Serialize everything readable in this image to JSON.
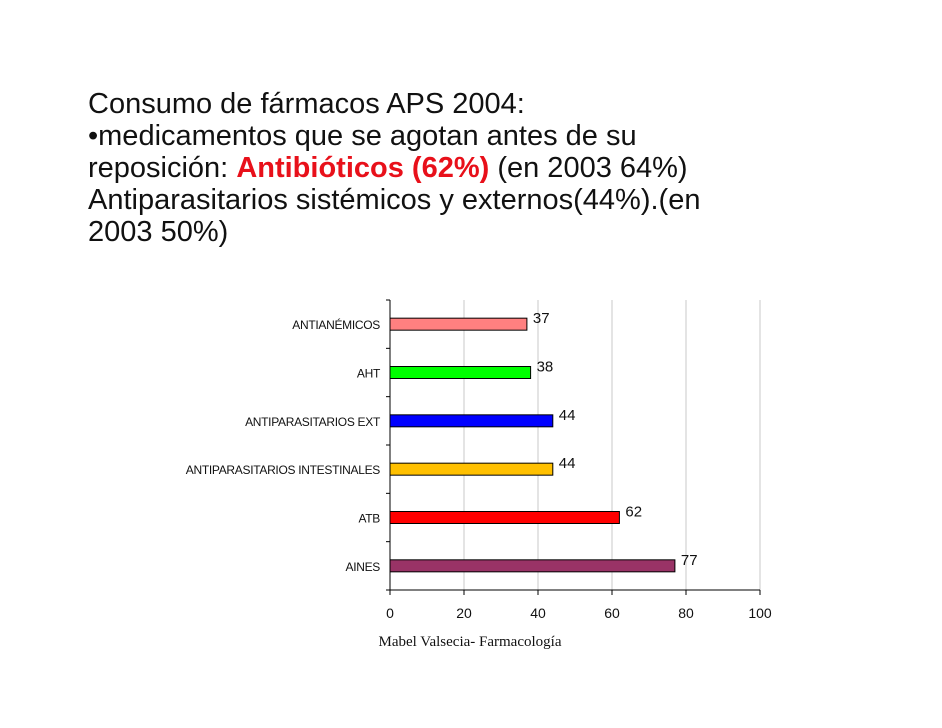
{
  "heading": {
    "line1": "Consumo de fármacos APS  2004:",
    "line2": "•medicamentos que se agotan antes de su",
    "line3_pre": "reposición: ",
    "line3_highlight": "Antibióticos (62%)",
    "line3_post": " (en 2003 64%)",
    "line4": "Antiparasitarios sistémicos y externos(44%).(en",
    "line5": "2003 50%)"
  },
  "footer": "Mabel Valsecia- Farmacología",
  "chart_data": {
    "type": "bar",
    "orientation": "horizontal",
    "title": "",
    "xlabel": "",
    "ylabel": "",
    "categories": [
      "ANTIANÉMICOS",
      "AHT",
      "ANTIPARASITARIOS EXT",
      "ANTIPARASITARIOS INTESTINALES",
      "ATB",
      "AINES"
    ],
    "values": [
      37,
      38,
      44,
      44,
      62,
      77
    ],
    "colors": [
      "#ff8080",
      "#00ff00",
      "#0000ff",
      "#ffc000",
      "#ff0000",
      "#993366"
    ],
    "xlim": [
      0,
      100
    ],
    "xticks": [
      0,
      20,
      40,
      60,
      80,
      100
    ],
    "xtick_labels": [
      "0",
      "20",
      "40",
      "60",
      "80",
      "100"
    ],
    "grid": true,
    "data_labels": true,
    "legend": "none"
  }
}
